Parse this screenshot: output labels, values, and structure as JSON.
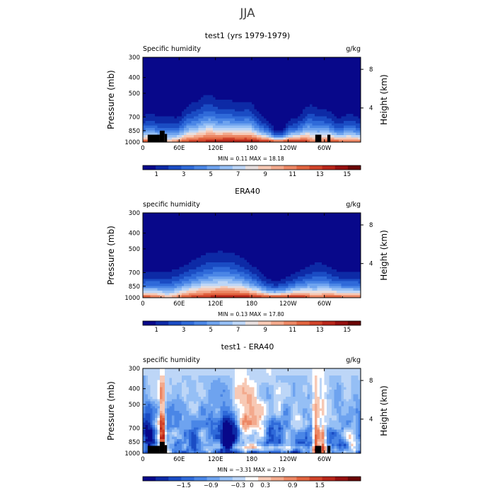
{
  "figure": {
    "title": "JJA"
  },
  "chart_data": [
    {
      "type": "heatmap",
      "title": "test1 (yrs 1979-1979)",
      "variable": "Specific humidity",
      "units": "g/kg",
      "ylabel": "Pressure (mb)",
      "ylabel_right": "Height (km)",
      "x_ticks": [
        "0",
        "60E",
        "120E",
        "180",
        "120W",
        "60W"
      ],
      "x_tick_values": [
        0,
        60,
        120,
        180,
        240,
        300
      ],
      "xlim": [
        0,
        360
      ],
      "y_ticks": [
        "300",
        "400",
        "500",
        "700",
        "850",
        "1000"
      ],
      "y_tick_values": [
        300,
        400,
        500,
        700,
        850,
        1000
      ],
      "ylim": [
        1000,
        300
      ],
      "y_scale": "log",
      "right_ticks": [
        "8",
        "4"
      ],
      "right_tick_pressures": [
        356,
        616
      ],
      "stats": "MIN =    0.11   MAX =   18.18",
      "min": 0.11,
      "max": 18.18,
      "colorbar_levels": [
        0,
        1,
        2,
        3,
        4,
        5,
        6,
        7,
        8,
        9,
        10,
        11,
        12,
        13,
        14,
        15,
        16
      ],
      "colorbar_labels": [
        "1",
        "3",
        "5",
        "7",
        "9",
        "11",
        "13",
        "15"
      ],
      "colorbar_label_values": [
        1,
        3,
        5,
        7,
        9,
        11,
        13,
        15
      ],
      "colors": [
        "#08088a",
        "#0d2aa6",
        "#1a4cc4",
        "#2f6ad9",
        "#4a86e6",
        "#6ea3ef",
        "#95bff5",
        "#bdd6f7",
        "#e7dede",
        "#f7c9b5",
        "#f3a98c",
        "#ec8764",
        "#e1643f",
        "#d0432a",
        "#b8261a",
        "#961010",
        "#6b0505"
      ],
      "profile": "model",
      "terrain": [
        {
          "x0": 8,
          "x1": 28,
          "p": 900
        },
        {
          "x0": 28,
          "x1": 36,
          "p": 850
        },
        {
          "x0": 36,
          "x1": 40,
          "p": 890
        },
        {
          "x0": 285,
          "x1": 295,
          "p": 900
        },
        {
          "x0": 305,
          "x1": 310,
          "p": 900
        }
      ]
    },
    {
      "type": "heatmap",
      "title": "ERA40",
      "variable": "specific humidity",
      "units": "g/kg",
      "ylabel": "Pressure (mb)",
      "ylabel_right": "Height (km)",
      "x_ticks": [
        "0",
        "60E",
        "120E",
        "180",
        "120W",
        "60W"
      ],
      "x_tick_values": [
        0,
        60,
        120,
        180,
        240,
        300
      ],
      "xlim": [
        0,
        360
      ],
      "y_ticks": [
        "300",
        "400",
        "500",
        "700",
        "850",
        "1000"
      ],
      "y_tick_values": [
        300,
        400,
        500,
        700,
        850,
        1000
      ],
      "ylim": [
        1000,
        300
      ],
      "y_scale": "log",
      "right_ticks": [
        "8",
        "4"
      ],
      "right_tick_pressures": [
        356,
        616
      ],
      "stats": "MIN =    0.13   MAX =   17.80",
      "min": 0.13,
      "max": 17.8,
      "colorbar_levels": [
        0,
        1,
        2,
        3,
        4,
        5,
        6,
        7,
        8,
        9,
        10,
        11,
        12,
        13,
        14,
        15,
        16
      ],
      "colorbar_labels": [
        "1",
        "3",
        "5",
        "7",
        "9",
        "11",
        "13",
        "15"
      ],
      "colorbar_label_values": [
        1,
        3,
        5,
        7,
        9,
        11,
        13,
        15
      ],
      "colors": [
        "#08088a",
        "#0d2aa6",
        "#1a4cc4",
        "#2f6ad9",
        "#4a86e6",
        "#6ea3ef",
        "#95bff5",
        "#bdd6f7",
        "#e7dede",
        "#f7c9b5",
        "#f3a98c",
        "#ec8764",
        "#e1643f",
        "#d0432a",
        "#b8261a",
        "#961010",
        "#6b0505"
      ],
      "profile": "obs",
      "terrain": []
    },
    {
      "type": "heatmap",
      "title": "test1 - ERA40",
      "variable": "specific humidity",
      "units": "g/kg",
      "ylabel": "Pressure (mb)",
      "ylabel_right": "Height (km)",
      "x_ticks": [
        "0",
        "60E",
        "120E",
        "180",
        "120W",
        "60W"
      ],
      "x_tick_values": [
        0,
        60,
        120,
        180,
        240,
        300
      ],
      "xlim": [
        0,
        360
      ],
      "y_ticks": [
        "300",
        "400",
        "500",
        "700",
        "850",
        "1000"
      ],
      "y_tick_values": [
        300,
        400,
        500,
        700,
        850,
        1000
      ],
      "ylim": [
        1000,
        300
      ],
      "y_scale": "log",
      "right_ticks": [
        "8",
        "4"
      ],
      "right_tick_pressures": [
        356,
        616
      ],
      "stats": "MIN =   −3.31   MAX =    2.19",
      "min": -3.31,
      "max": 2.19,
      "colorbar_levels": [
        -2.4,
        -2.1,
        -1.8,
        -1.5,
        -1.2,
        -0.9,
        -0.6,
        -0.3,
        0,
        0.3,
        0.6,
        0.9,
        1.2,
        1.5,
        1.8,
        2.1,
        2.4
      ],
      "colorbar_labels": [
        "−1.5",
        "−0.9",
        "−0.3",
        "0",
        "0.3",
        "0.9",
        "1.5"
      ],
      "colorbar_label_values": [
        -1.5,
        -0.9,
        -0.3,
        0,
        0.3,
        0.9,
        1.5
      ],
      "colors": [
        "#08088a",
        "#0d2aa6",
        "#1a4cc4",
        "#2f6ad9",
        "#4a86e6",
        "#6ea3ef",
        "#95bff5",
        "#bdd6f7",
        "#ffffff",
        "#f7c9b5",
        "#f3a98c",
        "#ec8764",
        "#e1643f",
        "#d0432a",
        "#b8261a",
        "#961010",
        "#6b0505"
      ],
      "profile": "diff",
      "terrain": [
        {
          "x0": 8,
          "x1": 28,
          "p": 900
        },
        {
          "x0": 28,
          "x1": 36,
          "p": 850
        },
        {
          "x0": 36,
          "x1": 40,
          "p": 890
        },
        {
          "x0": 285,
          "x1": 295,
          "p": 900
        },
        {
          "x0": 305,
          "x1": 310,
          "p": 900
        }
      ]
    }
  ]
}
